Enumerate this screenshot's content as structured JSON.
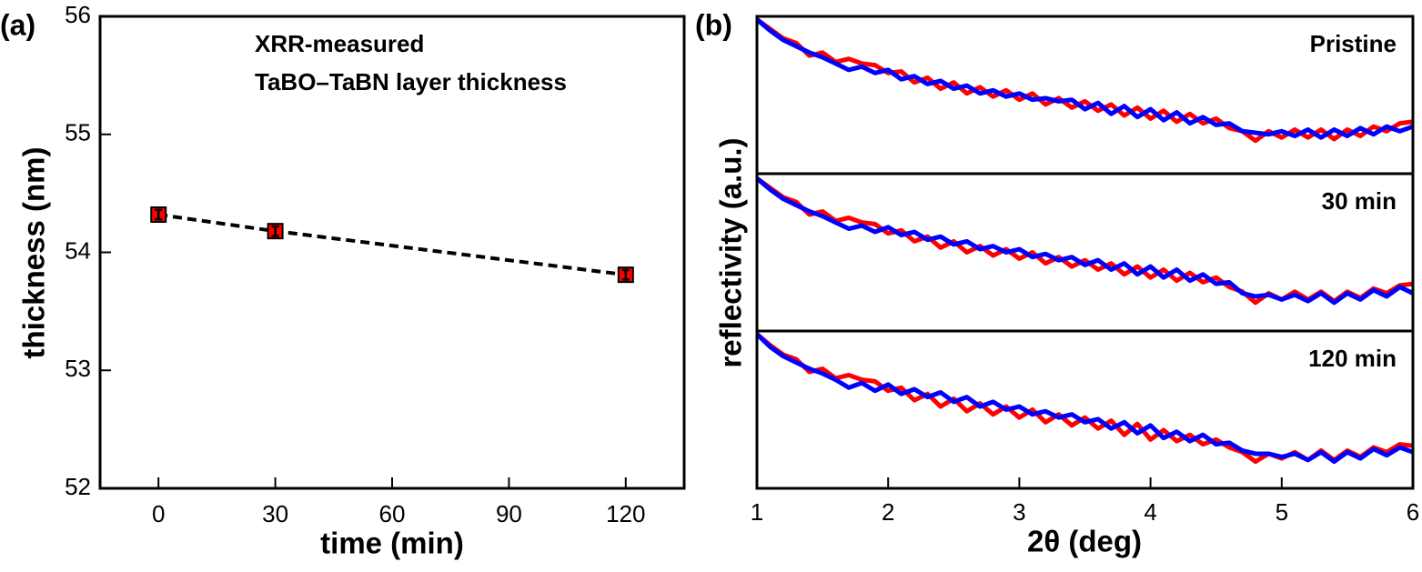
{
  "chart_data": [
    {
      "type": "scatter",
      "panel_label": "(a)",
      "annotations": [
        "XRR-measured",
        "TaBO–TaBN layer thickness"
      ],
      "xlabel": "time (min)",
      "ylabel": "thickness (nm)",
      "x": [
        0,
        30,
        120
      ],
      "values": [
        54.32,
        54.18,
        53.81
      ],
      "errors": [
        0.04,
        0.04,
        0.04
      ],
      "color": "#ff0000",
      "xlim": [
        -15,
        135
      ],
      "xticks": [
        0,
        30,
        60,
        90,
        120
      ],
      "ylim": [
        52,
        56
      ],
      "yticks": [
        52,
        53,
        54,
        55,
        56
      ]
    },
    {
      "type": "line",
      "panel_label": "(b)",
      "xlabel": "2θ (deg)",
      "ylabel": "reflectivity (a.u.)",
      "xlim": [
        1,
        6
      ],
      "xticks": [
        1,
        2,
        3,
        4,
        5,
        6
      ],
      "ylim": [
        0,
        1
      ],
      "x": [
        1.0,
        1.1,
        1.2,
        1.3,
        1.4,
        1.5,
        1.6,
        1.7,
        1.8,
        1.9,
        2.0,
        2.1,
        2.2,
        2.3,
        2.4,
        2.5,
        2.6,
        2.7,
        2.8,
        2.9,
        3.0,
        3.1,
        3.2,
        3.3,
        3.4,
        3.5,
        3.6,
        3.7,
        3.8,
        3.9,
        4.0,
        4.1,
        4.2,
        4.3,
        4.4,
        4.5,
        4.6,
        4.7,
        4.8,
        4.9,
        5.0,
        5.1,
        5.2,
        5.3,
        5.4,
        5.5,
        5.6,
        5.7,
        5.8,
        5.9,
        6.0
      ],
      "panels": [
        {
          "label": "Pristine",
          "series": [
            {
              "color": "#ff0000",
              "values": [
                0.98,
                0.92,
                0.86,
                0.83,
                0.75,
                0.77,
                0.71,
                0.73,
                0.7,
                0.69,
                0.64,
                0.65,
                0.58,
                0.61,
                0.54,
                0.58,
                0.51,
                0.55,
                0.49,
                0.53,
                0.47,
                0.51,
                0.44,
                0.48,
                0.42,
                0.46,
                0.4,
                0.44,
                0.37,
                0.42,
                0.35,
                0.4,
                0.33,
                0.38,
                0.32,
                0.35,
                0.29,
                0.27,
                0.21,
                0.27,
                0.23,
                0.28,
                0.23,
                0.28,
                0.22,
                0.28,
                0.24,
                0.3,
                0.27,
                0.32,
                0.33
              ]
            },
            {
              "color": "#0000ff",
              "values": [
                0.98,
                0.91,
                0.85,
                0.81,
                0.77,
                0.74,
                0.7,
                0.66,
                0.68,
                0.64,
                0.66,
                0.6,
                0.62,
                0.57,
                0.59,
                0.54,
                0.56,
                0.51,
                0.53,
                0.49,
                0.51,
                0.47,
                0.48,
                0.46,
                0.47,
                0.41,
                0.45,
                0.38,
                0.43,
                0.36,
                0.41,
                0.34,
                0.39,
                0.32,
                0.36,
                0.31,
                0.32,
                0.27,
                0.26,
                0.25,
                0.27,
                0.24,
                0.28,
                0.23,
                0.28,
                0.24,
                0.29,
                0.25,
                0.3,
                0.27,
                0.3
              ]
            }
          ]
        },
        {
          "label": "30 min",
          "series": [
            {
              "color": "#ff0000",
              "values": [
                0.97,
                0.91,
                0.85,
                0.82,
                0.74,
                0.76,
                0.7,
                0.72,
                0.69,
                0.68,
                0.62,
                0.64,
                0.57,
                0.6,
                0.53,
                0.57,
                0.5,
                0.54,
                0.48,
                0.52,
                0.46,
                0.5,
                0.43,
                0.47,
                0.41,
                0.45,
                0.39,
                0.43,
                0.36,
                0.41,
                0.34,
                0.39,
                0.32,
                0.37,
                0.31,
                0.34,
                0.28,
                0.25,
                0.18,
                0.24,
                0.2,
                0.25,
                0.2,
                0.25,
                0.19,
                0.25,
                0.21,
                0.27,
                0.24,
                0.29,
                0.3
              ]
            },
            {
              "color": "#0000ff",
              "values": [
                0.97,
                0.9,
                0.84,
                0.8,
                0.76,
                0.73,
                0.69,
                0.65,
                0.67,
                0.63,
                0.66,
                0.61,
                0.63,
                0.58,
                0.6,
                0.55,
                0.57,
                0.52,
                0.54,
                0.5,
                0.52,
                0.47,
                0.49,
                0.45,
                0.47,
                0.42,
                0.45,
                0.39,
                0.43,
                0.36,
                0.41,
                0.34,
                0.39,
                0.32,
                0.36,
                0.3,
                0.31,
                0.24,
                0.22,
                0.23,
                0.2,
                0.23,
                0.19,
                0.24,
                0.18,
                0.24,
                0.2,
                0.26,
                0.22,
                0.28,
                0.24
              ]
            }
          ]
        },
        {
          "label": "120 min",
          "series": [
            {
              "color": "#ff0000",
              "values": [
                0.98,
                0.91,
                0.85,
                0.82,
                0.74,
                0.76,
                0.7,
                0.72,
                0.69,
                0.68,
                0.62,
                0.64,
                0.56,
                0.6,
                0.52,
                0.57,
                0.49,
                0.54,
                0.47,
                0.52,
                0.45,
                0.5,
                0.42,
                0.47,
                0.4,
                0.45,
                0.38,
                0.43,
                0.34,
                0.41,
                0.31,
                0.37,
                0.3,
                0.34,
                0.28,
                0.31,
                0.26,
                0.23,
                0.17,
                0.22,
                0.19,
                0.23,
                0.18,
                0.24,
                0.18,
                0.24,
                0.2,
                0.26,
                0.23,
                0.28,
                0.27
              ]
            },
            {
              "color": "#0000ff",
              "values": [
                0.98,
                0.9,
                0.84,
                0.8,
                0.76,
                0.73,
                0.69,
                0.64,
                0.67,
                0.62,
                0.66,
                0.6,
                0.63,
                0.58,
                0.61,
                0.55,
                0.58,
                0.52,
                0.55,
                0.5,
                0.52,
                0.47,
                0.49,
                0.45,
                0.47,
                0.42,
                0.44,
                0.38,
                0.42,
                0.35,
                0.4,
                0.32,
                0.36,
                0.3,
                0.34,
                0.28,
                0.29,
                0.24,
                0.22,
                0.22,
                0.2,
                0.22,
                0.18,
                0.23,
                0.17,
                0.23,
                0.19,
                0.25,
                0.21,
                0.26,
                0.23
              ]
            }
          ]
        }
      ]
    }
  ]
}
